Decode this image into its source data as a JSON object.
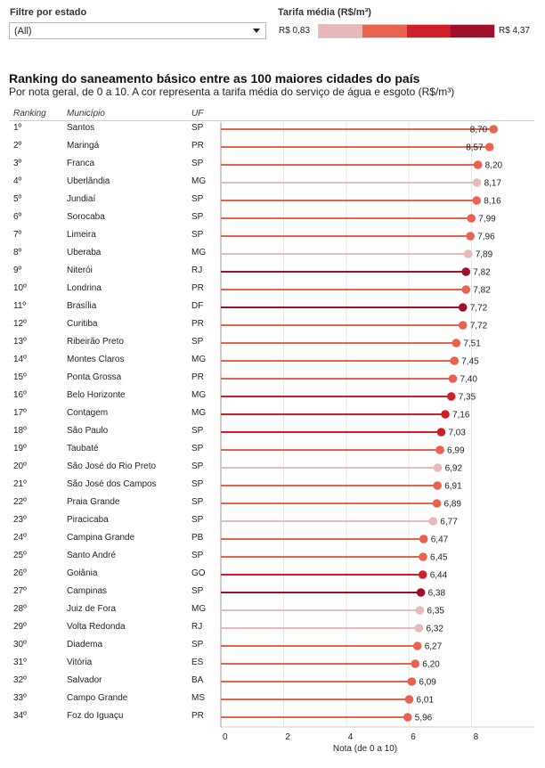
{
  "filter": {
    "label": "Filtre por estado",
    "selected": "(All)"
  },
  "legend": {
    "label": "Tarifa média (R$/m³)",
    "min_label": "R$ 0,83",
    "max_label": "R$ 4,37",
    "colors": [
      "#e9b8b8",
      "#e8624e",
      "#cf1f28",
      "#a0102a"
    ]
  },
  "header": {
    "title": "Ranking do saneamento básico entre as 100 maiores cidades do país",
    "subtitle": "Por nota geral, de 0 a 10. A cor representa a tarifa média do serviço de água e esgoto (R$/m³)",
    "col_rank": "Ranking",
    "col_city": "Município",
    "col_uf": "UF"
  },
  "chart_data": {
    "type": "bar",
    "xlabel": "Nota (de 0 a 10)",
    "xlim": [
      0,
      10
    ],
    "xticks": [
      "0",
      "2",
      "4",
      "6",
      "8"
    ],
    "rows": [
      {
        "rank": "1º",
        "city": "Santos",
        "uf": "SP",
        "value": 8.7,
        "label": "8,70",
        "tier": 2
      },
      {
        "rank": "2º",
        "city": "Maringá",
        "uf": "PR",
        "value": 8.57,
        "label": "8,57",
        "tier": 2
      },
      {
        "rank": "3º",
        "city": "Franca",
        "uf": "SP",
        "value": 8.2,
        "label": "8,20",
        "tier": 2
      },
      {
        "rank": "4º",
        "city": "Uberlândia",
        "uf": "MG",
        "value": 8.17,
        "label": "8,17",
        "tier": 1
      },
      {
        "rank": "5º",
        "city": "Jundiaí",
        "uf": "SP",
        "value": 8.16,
        "label": "8,16",
        "tier": 2
      },
      {
        "rank": "6º",
        "city": "Sorocaba",
        "uf": "SP",
        "value": 7.99,
        "label": "7,99",
        "tier": 2
      },
      {
        "rank": "7º",
        "city": "Limeira",
        "uf": "SP",
        "value": 7.96,
        "label": "7,96",
        "tier": 2
      },
      {
        "rank": "8º",
        "city": "Uberaba",
        "uf": "MG",
        "value": 7.89,
        "label": "7,89",
        "tier": 1
      },
      {
        "rank": "9º",
        "city": "Niterói",
        "uf": "RJ",
        "value": 7.82,
        "label": "7,82",
        "tier": 4
      },
      {
        "rank": "10º",
        "city": "Londrina",
        "uf": "PR",
        "value": 7.82,
        "label": "7,82",
        "tier": 2
      },
      {
        "rank": "11º",
        "city": "Brasília",
        "uf": "DF",
        "value": 7.72,
        "label": "7,72",
        "tier": 4
      },
      {
        "rank": "12º",
        "city": "Curitiba",
        "uf": "PR",
        "value": 7.72,
        "label": "7,72",
        "tier": 2
      },
      {
        "rank": "13º",
        "city": "Ribeirão Preto",
        "uf": "SP",
        "value": 7.51,
        "label": "7,51",
        "tier": 2
      },
      {
        "rank": "14º",
        "city": "Montes Claros",
        "uf": "MG",
        "value": 7.45,
        "label": "7,45",
        "tier": 2
      },
      {
        "rank": "15º",
        "city": "Ponta Grossa",
        "uf": "PR",
        "value": 7.4,
        "label": "7,40",
        "tier": 2
      },
      {
        "rank": "16º",
        "city": "Belo Horizonte",
        "uf": "MG",
        "value": 7.35,
        "label": "7,35",
        "tier": 3
      },
      {
        "rank": "17º",
        "city": "Contagem",
        "uf": "MG",
        "value": 7.16,
        "label": "7,16",
        "tier": 3
      },
      {
        "rank": "18º",
        "city": "São Paulo",
        "uf": "SP",
        "value": 7.03,
        "label": "7,03",
        "tier": 3
      },
      {
        "rank": "19º",
        "city": "Taubaté",
        "uf": "SP",
        "value": 6.99,
        "label": "6,99",
        "tier": 2
      },
      {
        "rank": "20º",
        "city": "São José do Rio Preto",
        "uf": "SP",
        "value": 6.92,
        "label": "6,92",
        "tier": 1
      },
      {
        "rank": "21º",
        "city": "São José dos Campos",
        "uf": "SP",
        "value": 6.91,
        "label": "6,91",
        "tier": 2
      },
      {
        "rank": "22º",
        "city": "Praia Grande",
        "uf": "SP",
        "value": 6.89,
        "label": "6,89",
        "tier": 2
      },
      {
        "rank": "23º",
        "city": "Piracicaba",
        "uf": "SP",
        "value": 6.77,
        "label": "6,77",
        "tier": 1
      },
      {
        "rank": "24º",
        "city": "Campina Grande",
        "uf": "PB",
        "value": 6.47,
        "label": "6,47",
        "tier": 2
      },
      {
        "rank": "25º",
        "city": "Santo André",
        "uf": "SP",
        "value": 6.45,
        "label": "6,45",
        "tier": 2
      },
      {
        "rank": "26º",
        "city": "Goiânia",
        "uf": "GO",
        "value": 6.44,
        "label": "6,44",
        "tier": 3
      },
      {
        "rank": "27º",
        "city": "Campinas",
        "uf": "SP",
        "value": 6.38,
        "label": "6,38",
        "tier": 4
      },
      {
        "rank": "28º",
        "city": "Juiz de Fora",
        "uf": "MG",
        "value": 6.35,
        "label": "6,35",
        "tier": 1
      },
      {
        "rank": "29º",
        "city": "Volta Redonda",
        "uf": "RJ",
        "value": 6.32,
        "label": "6,32",
        "tier": 1
      },
      {
        "rank": "30º",
        "city": "Diadema",
        "uf": "SP",
        "value": 6.27,
        "label": "6,27",
        "tier": 2
      },
      {
        "rank": "31º",
        "city": "Vitória",
        "uf": "ES",
        "value": 6.2,
        "label": "6,20",
        "tier": 2
      },
      {
        "rank": "32º",
        "city": "Salvador",
        "uf": "BA",
        "value": 6.09,
        "label": "6,09",
        "tier": 2
      },
      {
        "rank": "33º",
        "city": "Campo Grande",
        "uf": "MS",
        "value": 6.01,
        "label": "6,01",
        "tier": 2
      },
      {
        "rank": "34º",
        "city": "Foz do Iguaçu",
        "uf": "PR",
        "value": 5.96,
        "label": "5,96",
        "tier": 2
      }
    ]
  }
}
